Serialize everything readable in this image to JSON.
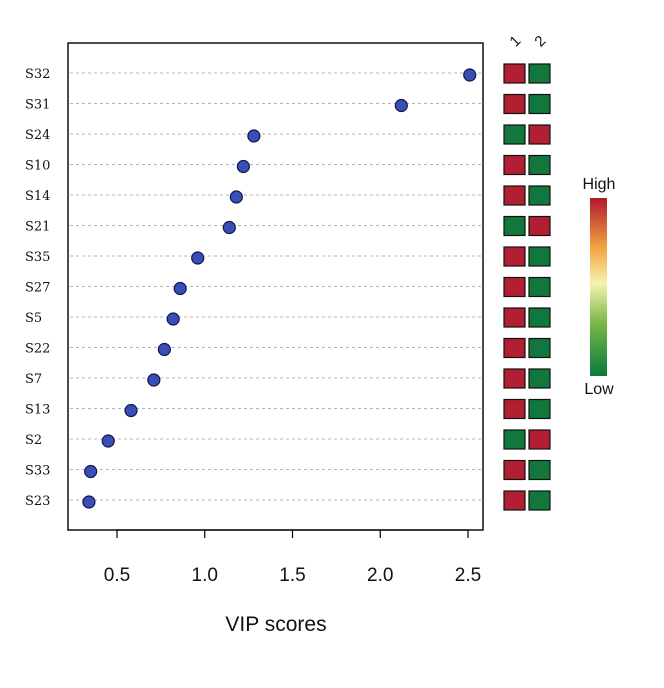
{
  "chart_data": {
    "type": "scatter",
    "xlabel": "VIP scores",
    "xticks": [
      "0.5",
      "1.0",
      "1.5",
      "2.0",
      "2.5"
    ],
    "xtick_values": [
      0.5,
      1.0,
      1.5,
      2.0,
      2.5
    ],
    "xlim": [
      0.28,
      2.6
    ],
    "categories": [
      "S32",
      "S31",
      "S24",
      "S10",
      "S14",
      "S21",
      "S35",
      "S27",
      "S5",
      "S22",
      "S7",
      "S13",
      "S2",
      "S33",
      "S23"
    ],
    "values": [
      2.51,
      2.12,
      1.28,
      1.22,
      1.18,
      1.14,
      0.96,
      0.86,
      0.82,
      0.77,
      0.71,
      0.58,
      0.45,
      0.35,
      0.34
    ],
    "point_color": "#3a4fb5",
    "heatmap": {
      "columns": [
        "1",
        "2"
      ],
      "levels": [
        [
          "high",
          "low"
        ],
        [
          "high",
          "low"
        ],
        [
          "low",
          "high"
        ],
        [
          "high",
          "low"
        ],
        [
          "high",
          "low"
        ],
        [
          "low",
          "high"
        ],
        [
          "high",
          "low"
        ],
        [
          "high",
          "low"
        ],
        [
          "high",
          "low"
        ],
        [
          "high",
          "low"
        ],
        [
          "high",
          "low"
        ],
        [
          "high",
          "low"
        ],
        [
          "low",
          "high"
        ],
        [
          "high",
          "low"
        ],
        [
          "high",
          "low"
        ]
      ],
      "high_color": "#b21f32",
      "low_color": "#11773c"
    },
    "legend": {
      "high_label": "High",
      "low_label": "Low"
    },
    "grid": "dashed horizontal"
  }
}
